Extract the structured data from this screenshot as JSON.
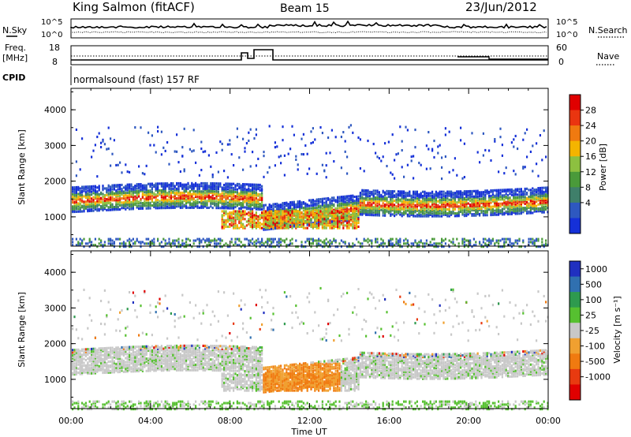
{
  "header": {
    "station": "King Salmon (fitACF)",
    "beam": "Beam 15",
    "date": "23/Jun/2012"
  },
  "status_panels": {
    "nsky_label": "N.Sky",
    "nsky_ticks": [
      "10^5",
      "10^0"
    ],
    "nsearch_label": "N.Search",
    "nsearch_ticks": [
      "10^5",
      "10^0"
    ],
    "freq_label": "Freq.",
    "freq_unit": "[MHz]",
    "freq_ticks": [
      "18",
      "8"
    ],
    "nave_label": "Nave",
    "nave_ticks": [
      "60",
      "0"
    ],
    "cpid_label": "CPID",
    "cpid_text": "normalsound (fast) 157 RF"
  },
  "chart_data": [
    {
      "type": "heatmap",
      "name": "power",
      "ylabel": "Slant Range [km]",
      "ylim": [
        180,
        4600
      ],
      "yticks": [
        1000,
        2000,
        3000,
        4000
      ],
      "x_hours": [
        0,
        4,
        8,
        12,
        16,
        20,
        24
      ],
      "colorbar_label": "Power [dB]",
      "colorbar_ticks": [
        "4",
        "8",
        "12",
        "16",
        "20",
        "24",
        "28"
      ],
      "colors": [
        "#1530d8",
        "#2e58c0",
        "#3f7f6a",
        "#4a9a3a",
        "#8dc040",
        "#f4b400",
        "#f07a10",
        "#ea3510",
        "#e00000"
      ]
    },
    {
      "type": "heatmap",
      "name": "velocity",
      "ylabel": "Slant Range [km]",
      "ylim": [
        180,
        4600
      ],
      "yticks": [
        1000,
        2000,
        3000,
        4000
      ],
      "x_hours": [
        0,
        4,
        8,
        12,
        16,
        20,
        24
      ],
      "colorbar_label": "Velocity [m s⁻¹]",
      "colorbar_ticks": [
        "1000",
        "500",
        "100",
        "25",
        "-25",
        "-100",
        "-500",
        "-1000"
      ],
      "colors": [
        "#2030c0",
        "#3070b0",
        "#2e9a4e",
        "#56c030",
        "#c8c8c8",
        "#f0a030",
        "#f07a10",
        "#e83a10",
        "#e00000"
      ]
    }
  ],
  "x_axis": {
    "ticks": [
      "00:00",
      "04:00",
      "08:00",
      "12:00",
      "16:00",
      "20:00",
      "00:00"
    ],
    "label": "Time UT"
  }
}
